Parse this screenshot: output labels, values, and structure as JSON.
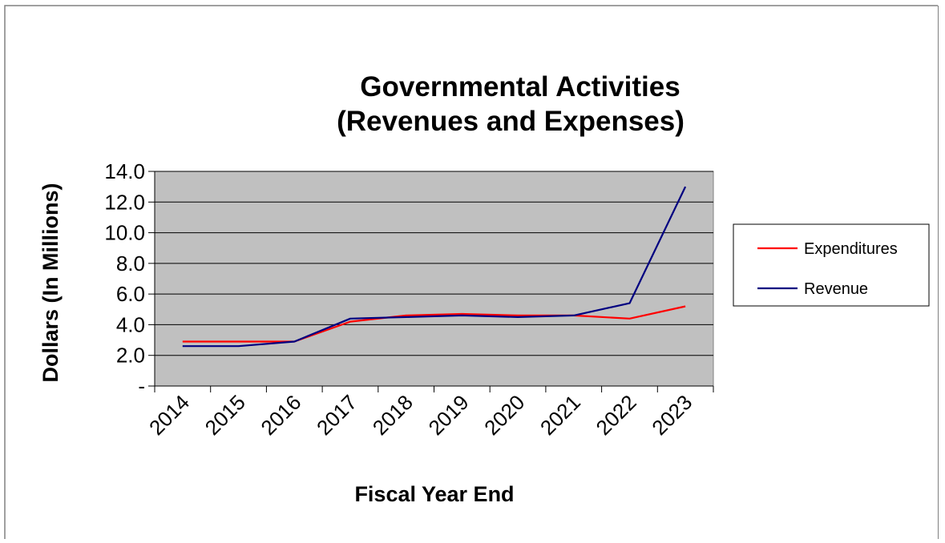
{
  "chart_data": {
    "type": "line",
    "title": [
      "Governmental Activities",
      "(Revenues and Expenses)"
    ],
    "xlabel": "Fiscal Year End",
    "ylabel": "Dollars (In Millions)",
    "categories": [
      "2014",
      "2015",
      "2016",
      "2017",
      "2018",
      "2019",
      "2020",
      "2021",
      "2022",
      "2023"
    ],
    "ylim": [
      0,
      14
    ],
    "yticks": [
      {
        "value": 0,
        "label": "-"
      },
      {
        "value": 2,
        "label": "2.0"
      },
      {
        "value": 4,
        "label": "4.0"
      },
      {
        "value": 6,
        "label": "6.0"
      },
      {
        "value": 8,
        "label": "8.0"
      },
      {
        "value": 10,
        "label": "10.0"
      },
      {
        "value": 12,
        "label": "12.0"
      },
      {
        "value": 14,
        "label": "14.0"
      }
    ],
    "grid": true,
    "legend_position": "right",
    "plot_background": "#c0c0c0",
    "series": [
      {
        "name": "Expenditures",
        "color": "#ff0000",
        "values": [
          2.9,
          2.9,
          2.9,
          4.2,
          4.6,
          4.7,
          4.6,
          4.6,
          4.4,
          5.2
        ]
      },
      {
        "name": "Revenue",
        "color": "#000080",
        "values": [
          2.6,
          2.6,
          2.9,
          4.4,
          4.5,
          4.6,
          4.5,
          4.6,
          5.4,
          13.0
        ]
      }
    ]
  }
}
